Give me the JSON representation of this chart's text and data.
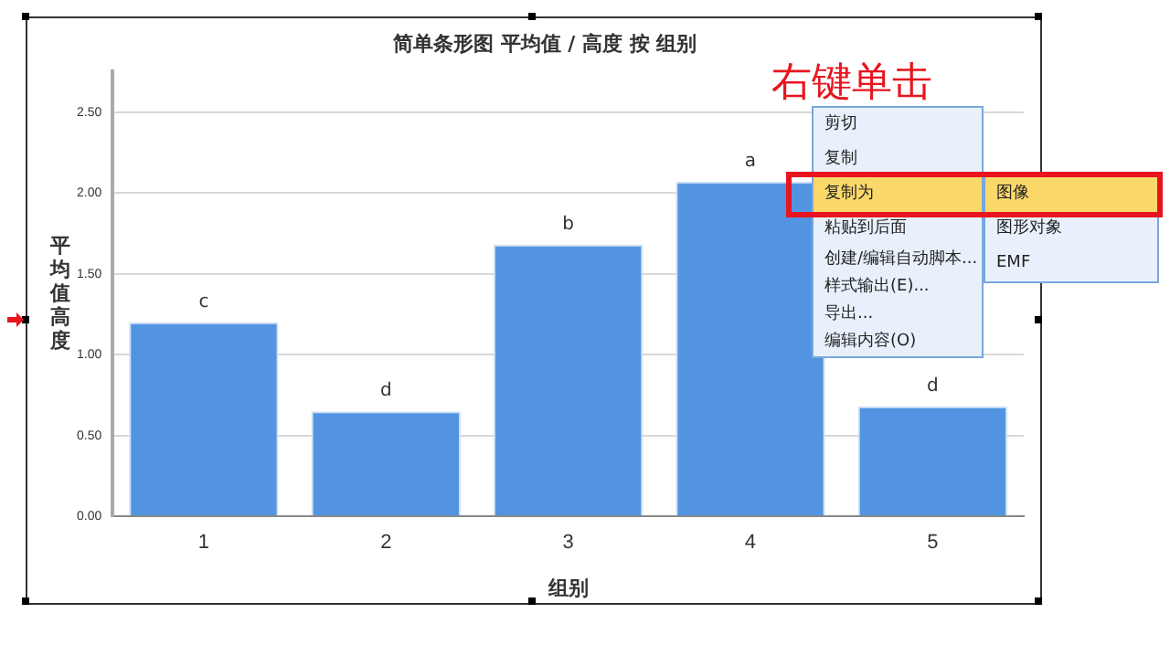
{
  "chart_data": {
    "type": "bar",
    "title": "简单条形图 平均值 / 高度 按 组别",
    "xlabel": "组别",
    "ylabel": "平均值高度",
    "categories": [
      "1",
      "2",
      "3",
      "4",
      "5"
    ],
    "values": [
      1.2,
      0.65,
      1.68,
      2.07,
      0.68
    ],
    "value_labels": [
      "c",
      "d",
      "b",
      "a",
      "d"
    ],
    "color": "#5294e2",
    "ylim": [
      0,
      2.75
    ],
    "yticks": [
      {
        "value": 0,
        "label": "0.00"
      },
      {
        "value": 0.5,
        "label": "0.50"
      },
      {
        "value": 1,
        "label": "1.00"
      },
      {
        "value": 1.5,
        "label": "1.50"
      },
      {
        "value": 2,
        "label": "2.00"
      },
      {
        "value": 2.5,
        "label": "2.50"
      }
    ],
    "grid": "y",
    "annotations": [
      "右键单击",
      "剪切",
      "复制",
      "复制为",
      "粘贴到后面",
      "创建/编辑自动脚本...",
      "样式输出(E)...",
      "导出...",
      "编辑内容(O)",
      "图像",
      "图形对象",
      "EMF"
    ]
  }
}
